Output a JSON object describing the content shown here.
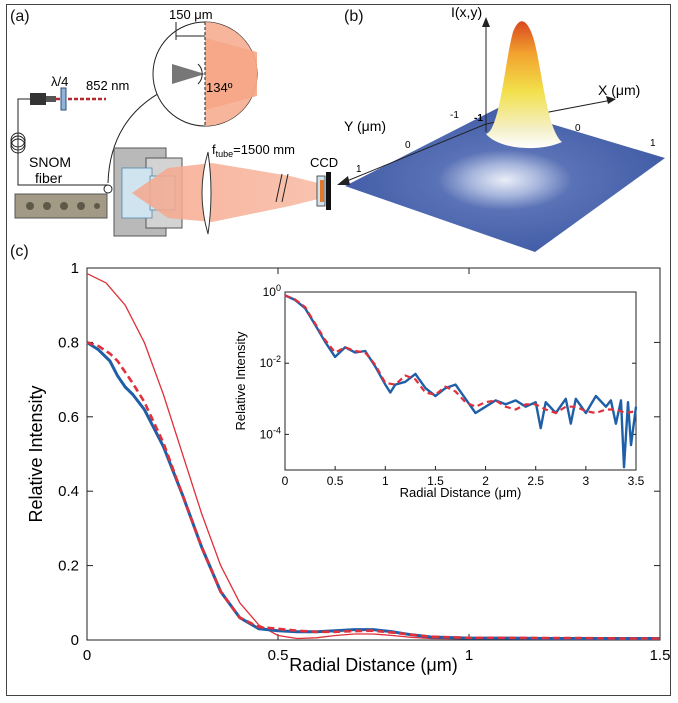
{
  "panels": {
    "a": "(a)",
    "b": "(b)",
    "c": "(c)"
  },
  "setup": {
    "wavelength": "852 nm",
    "waveplate": "λ/4",
    "fiber_label_line1": "SNOM",
    "fiber_label_line2": "fiber",
    "tip_size": "150 μm",
    "angle": "134º",
    "ftube_prefix": "f",
    "ftube_sub": "tube",
    "ftube_value": "=1500 mm",
    "camera": "CCD"
  },
  "beam_plot": {
    "z_label": "I(x,y)",
    "x_label": "X (μm)",
    "y_label": "Y (μm)",
    "x_ticks": [
      "-1",
      "0",
      "1"
    ],
    "y_ticks": [
      "-1",
      "0",
      "1"
    ]
  },
  "colors": {
    "measured": "#1f5fa8",
    "fit": "#e0303a",
    "theory": "#e0303a",
    "beam_bg": "#3b5aa8"
  },
  "chart_data": [
    {
      "type": "line",
      "xlabel": "Radial Distance (μm)",
      "ylabel": "Relative Intensity",
      "xlim": [
        0,
        1.5
      ],
      "ylim": [
        0,
        1
      ],
      "x_ticks": [
        "0",
        "0.5",
        "1",
        "1.5"
      ],
      "y_ticks": [
        "0",
        "0.2",
        "0.4",
        "0.6",
        "0.8",
        "1"
      ],
      "grid": false,
      "series": [
        {
          "style": "thin-solid-red",
          "x": [
            0,
            0.05,
            0.1,
            0.15,
            0.2,
            0.25,
            0.3,
            0.35,
            0.4,
            0.45,
            0.5,
            0.55,
            0.6,
            0.65,
            0.7,
            0.75,
            0.8,
            0.85,
            0.9,
            1.0,
            1.1,
            1.2,
            1.3,
            1.4,
            1.5
          ],
          "y": [
            0.985,
            0.96,
            0.9,
            0.8,
            0.66,
            0.5,
            0.34,
            0.2,
            0.1,
            0.04,
            0.012,
            0.004,
            0.006,
            0.012,
            0.016,
            0.016,
            0.012,
            0.007,
            0.004,
            0.003,
            0.004,
            0.004,
            0.003,
            0.003,
            0.003
          ]
        },
        {
          "style": "thick-solid-blue",
          "x": [
            0,
            0.03,
            0.06,
            0.08,
            0.1,
            0.12,
            0.15,
            0.2,
            0.25,
            0.3,
            0.35,
            0.4,
            0.45,
            0.5,
            0.55,
            0.6,
            0.65,
            0.7,
            0.75,
            0.8,
            0.85,
            0.9,
            1.0,
            1.1,
            1.2,
            1.3,
            1.4,
            1.5
          ],
          "y": [
            0.8,
            0.78,
            0.75,
            0.71,
            0.68,
            0.66,
            0.62,
            0.52,
            0.39,
            0.25,
            0.13,
            0.06,
            0.03,
            0.025,
            0.022,
            0.022,
            0.025,
            0.028,
            0.028,
            0.022,
            0.014,
            0.008,
            0.005,
            0.005,
            0.004,
            0.004,
            0.004,
            0.004
          ]
        },
        {
          "style": "dashed-red",
          "x": [
            0,
            0.03,
            0.06,
            0.08,
            0.1,
            0.12,
            0.15,
            0.2,
            0.25,
            0.3,
            0.35,
            0.4,
            0.45,
            0.5,
            0.55,
            0.6,
            0.65,
            0.7,
            0.75,
            0.8,
            0.85,
            0.9,
            1.0,
            1.1,
            1.2,
            1.3,
            1.4,
            1.5
          ],
          "y": [
            0.8,
            0.79,
            0.77,
            0.75,
            0.72,
            0.69,
            0.64,
            0.53,
            0.39,
            0.25,
            0.13,
            0.06,
            0.035,
            0.03,
            0.025,
            0.022,
            0.022,
            0.024,
            0.025,
            0.02,
            0.014,
            0.009,
            0.006,
            0.006,
            0.005,
            0.005,
            0.004,
            0.004
          ]
        }
      ]
    },
    {
      "type": "line",
      "yscale": "log",
      "xlabel": "Radial Distance (μm)",
      "ylabel": "Relative Intensity",
      "xlim": [
        0,
        3.5
      ],
      "ylim": [
        1e-05,
        1
      ],
      "x_ticks": [
        "0",
        "0.5",
        "1",
        "1.5",
        "2",
        "2.5",
        "3",
        "3.5"
      ],
      "y_ticks": [
        {
          "base": "10",
          "exp": "0",
          "value": 1
        },
        {
          "base": "10",
          "exp": "-2",
          "value": 0.01
        },
        {
          "base": "10",
          "exp": "-4",
          "value": 0.0001
        }
      ],
      "series": [
        {
          "style": "thick-solid-blue",
          "x": [
            0,
            0.1,
            0.2,
            0.3,
            0.4,
            0.5,
            0.6,
            0.7,
            0.8,
            0.9,
            1.0,
            1.05,
            1.1,
            1.2,
            1.3,
            1.4,
            1.5,
            1.6,
            1.7,
            1.8,
            1.9,
            2.0,
            2.1,
            2.2,
            2.3,
            2.4,
            2.5,
            2.55,
            2.6,
            2.7,
            2.8,
            2.85,
            2.9,
            3.0,
            3.1,
            3.2,
            3.25,
            3.3,
            3.35,
            3.38,
            3.42,
            3.45,
            3.5
          ],
          "y": [
            0.8,
            0.6,
            0.35,
            0.12,
            0.04,
            0.015,
            0.028,
            0.02,
            0.022,
            0.008,
            0.0025,
            0.0015,
            0.0025,
            0.003,
            0.005,
            0.002,
            0.0012,
            0.002,
            0.0025,
            0.001,
            0.0004,
            0.0006,
            0.0009,
            0.0007,
            0.0009,
            0.0006,
            0.0008,
            0.00015,
            0.0008,
            0.0004,
            0.001,
            0.0002,
            0.001,
            0.0004,
            0.0012,
            0.0006,
            0.0009,
            0.0002,
            0.0009,
            1.2e-05,
            0.0008,
            5e-05,
            0.0006
          ]
        },
        {
          "style": "dashed-red",
          "x": [
            0,
            0.1,
            0.2,
            0.3,
            0.4,
            0.5,
            0.6,
            0.7,
            0.8,
            0.9,
            1.0,
            1.1,
            1.2,
            1.3,
            1.4,
            1.5,
            1.6,
            1.7,
            1.8,
            1.9,
            2.0,
            2.1,
            2.2,
            2.3,
            2.4,
            2.5,
            2.6,
            2.7,
            2.8,
            2.9,
            3.0,
            3.1,
            3.2,
            3.3,
            3.4,
            3.5
          ],
          "y": [
            0.8,
            0.62,
            0.38,
            0.13,
            0.045,
            0.02,
            0.028,
            0.022,
            0.02,
            0.009,
            0.0028,
            0.0025,
            0.0045,
            0.0035,
            0.0015,
            0.0013,
            0.0022,
            0.0016,
            0.0008,
            0.0006,
            0.0008,
            0.0009,
            0.0006,
            0.0005,
            0.0007,
            0.0007,
            0.0005,
            0.0004,
            0.0006,
            0.0006,
            0.00045,
            0.0004,
            0.0005,
            0.0005,
            0.0004,
            0.00045
          ]
        }
      ]
    }
  ]
}
